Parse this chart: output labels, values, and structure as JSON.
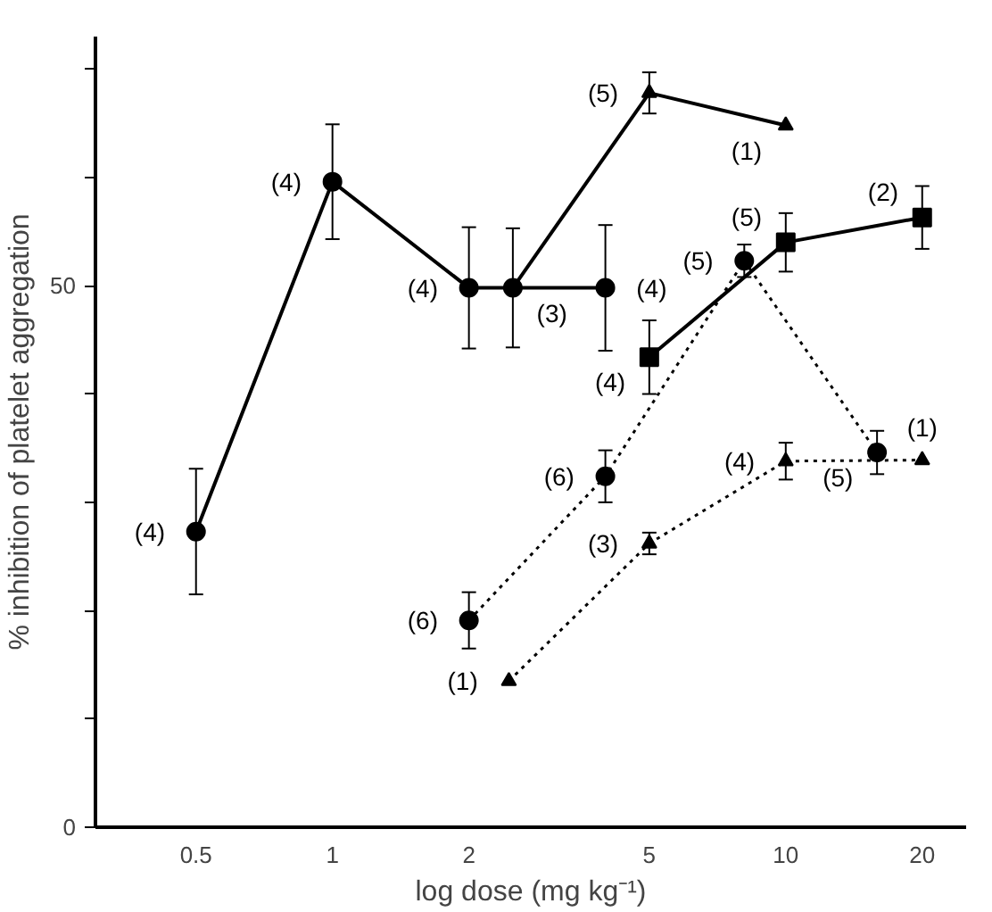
{
  "chart_data": {
    "type": "line",
    "xlabel": "log dose (mg kg⁻¹)",
    "ylabel": "% inhibition of platelet aggregation",
    "log": "x",
    "grid": false,
    "xlim": [
      0.3,
      25
    ],
    "xticks": [
      0.5,
      1,
      2,
      5,
      10,
      20
    ],
    "ylim": [
      0,
      73
    ],
    "yticks": [
      0,
      {
        "value": 10,
        "label": null
      },
      {
        "value": 20,
        "label": null
      },
      {
        "value": 30,
        "label": null
      },
      {
        "value": 40,
        "label": null
      },
      50,
      {
        "value": 60,
        "label": null
      },
      {
        "value": 70,
        "label": null
      }
    ],
    "series": [
      {
        "color": "#000000",
        "marker": "circle",
        "line_style": "solid",
        "x": [
          0.5,
          1,
          2,
          2.5,
          4
        ],
        "values": [
          27.3,
          59.6,
          49.8,
          49.8,
          49.8
        ],
        "errors": [
          5.8,
          5.3,
          5.6,
          5.5,
          5.8
        ]
      },
      {
        "color": "#000000",
        "marker": "triangle",
        "line_style": "solid",
        "x": [
          2.5,
          5,
          10
        ],
        "values": [
          49.8,
          67.8,
          64.8
        ],
        "errors": [
          null,
          1.9,
          null
        ]
      },
      {
        "color": "#000000",
        "marker": "square",
        "line_style": "solid",
        "x": [
          5,
          10,
          20
        ],
        "values": [
          43.4,
          54.0,
          56.3
        ],
        "errors": [
          3.4,
          2.7,
          2.9
        ]
      },
      {
        "color": "#000000",
        "marker": "circle",
        "line_style": "dotted",
        "x": [
          2,
          4,
          8.1,
          15.9
        ],
        "values": [
          19.1,
          32.4,
          52.3,
          34.6
        ],
        "errors": [
          2.6,
          2.4,
          1.5,
          2.0
        ]
      },
      {
        "color": "#000000",
        "marker": "triangle",
        "line_style": "dotted",
        "x": [
          2.45,
          5,
          10,
          20
        ],
        "values": [
          13.5,
          26.2,
          33.8,
          33.9
        ],
        "errors": [
          null,
          1.0,
          1.7,
          null
        ]
      }
    ],
    "annotations": [
      {
        "text": "(4)",
        "x": 0.5,
        "y": 27.3
      },
      {
        "text": "(4)",
        "x": 1,
        "y": 59.6
      },
      {
        "text": "(4)",
        "x": 2,
        "y": 49.8
      },
      {
        "text": "(3)",
        "x": 2.5,
        "y": 49.8
      },
      {
        "text": "(4)",
        "x": 4,
        "y": 49.8
      },
      {
        "text": "(5)",
        "x": 5,
        "y": 67.8
      },
      {
        "text": "(1)",
        "x": 10,
        "y": 64.8
      },
      {
        "text": "(5)",
        "x": 10,
        "y": 54.0
      },
      {
        "text": "(2)",
        "x": 20,
        "y": 56.3
      },
      {
        "text": "(5)",
        "x": 8.1,
        "y": 52.3
      },
      {
        "text": "(4)",
        "x": 5,
        "y": 43.4
      },
      {
        "text": "(6)",
        "x": 4,
        "y": 32.4
      },
      {
        "text": "(4)",
        "x": 10,
        "y": 33.8
      },
      {
        "text": "(5)",
        "x": 15.9,
        "y": 34.6
      },
      {
        "text": "(1)",
        "x": 20,
        "y": 33.9
      },
      {
        "text": "(3)",
        "x": 5,
        "y": 26.2
      },
      {
        "text": "(1)",
        "x": 2.45,
        "y": 13.5
      },
      {
        "text": "(6)",
        "x": 2,
        "y": 19.1
      }
    ]
  }
}
